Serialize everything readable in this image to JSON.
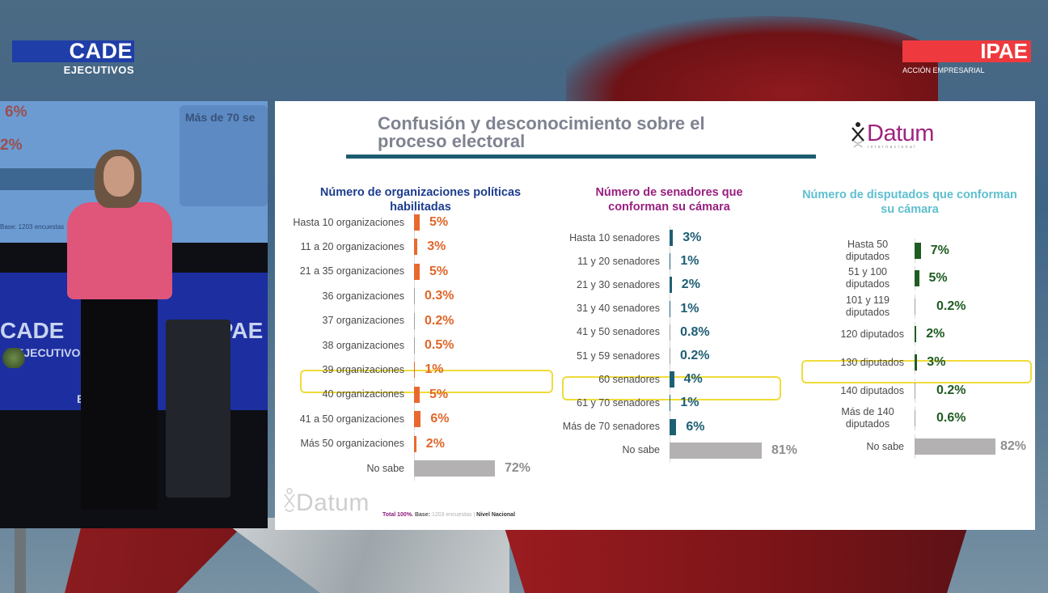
{
  "broadcast": {
    "left_logo": {
      "main": "CADE",
      "sub": "EJECUTIVOS",
      "color": "#1f3ea8"
    },
    "right_logo": {
      "main": "IPAE",
      "sub": "ACCIÓN EMPRESARIAL",
      "color": "#ee3a3e"
    }
  },
  "video_feed": {
    "screen_texts": [
      "6%",
      "2%",
      "Más de 70 se",
      "Base: 1203 encuestas"
    ],
    "backdrop_texts": [
      "CADE",
      "EJECUTIVOS",
      "IPAE",
      "EJ"
    ]
  },
  "slide": {
    "title_line1": "Confusión y desconocimiento sobre el",
    "title_line2": "proceso electoral",
    "brand": {
      "name": "Datum",
      "sub": "internacional",
      "color": "#a0237f"
    },
    "footer": {
      "total": "Total 100%.",
      "base_label": "Base:",
      "base_value": "1203 encuestas",
      "separator": "|",
      "scope": "Nivel Nacional",
      "logo": "Datum"
    }
  },
  "chart_data": [
    {
      "type": "bar",
      "orientation": "horizontal",
      "title": "Número de organizaciones políticas habilitadas",
      "bar_color": "#e8692e",
      "none_color": "#b3b1b2",
      "categories": [
        "Hasta 10 organizaciones",
        "11 a 20 organizaciones",
        "21 a 35 organizaciones",
        "36 organizaciones",
        "37 organizaciones",
        "38 organizaciones",
        "39 organizaciones",
        "40 organizaciones",
        "41 a 50 organizaciones",
        "Más 50 organizaciones",
        "No sabe"
      ],
      "values": [
        5,
        3,
        5,
        0.3,
        0.2,
        0.5,
        1,
        5,
        6,
        2,
        72
      ],
      "labels": [
        "5%",
        "3%",
        "5%",
        "0.3%",
        "0.2%",
        "0.5%",
        "1%",
        "5%",
        "6%",
        "2%",
        "72%"
      ],
      "highlighted": "39 organizaciones",
      "unit": "%"
    },
    {
      "type": "bar",
      "orientation": "horizontal",
      "title": "Número de senadores que conforman su cámara",
      "bar_color": "#1e5f74",
      "none_color": "#b3b1b2",
      "categories": [
        "Hasta 10 senadores",
        "11 y 20 senadores",
        "21 y 30 senadores",
        "31 y 40 senadores",
        "41 y 50 senadores",
        "51 y 59 senadores",
        "60 senadores",
        "61 y 70 senadores",
        "Más de 70 senadores",
        "No sabe"
      ],
      "values": [
        3,
        1,
        2,
        1,
        0.8,
        0.2,
        4,
        1,
        6,
        81
      ],
      "labels": [
        "3%",
        "1%",
        "2%",
        "1%",
        "0.8%",
        "0.2%",
        "4%",
        "1%",
        "6%",
        "81%"
      ],
      "highlighted": "60 senadores",
      "unit": "%"
    },
    {
      "type": "bar",
      "orientation": "horizontal",
      "title": "Número de disputados que conforman su cámara",
      "bar_color": "#1f5c22",
      "none_color": "#b3b1b2",
      "categories": [
        "Hasta 50 diputados",
        "51 y 100 diputados",
        "101 y 119 diputados",
        "120 diputados",
        "130 diputados",
        "140 diputados",
        "Más de 140 diputados",
        "No sabe"
      ],
      "values": [
        7,
        5,
        0.2,
        2,
        3,
        0.2,
        0.6,
        82
      ],
      "labels": [
        "7%",
        "5%",
        "0.2%",
        "2%",
        "3%",
        "0.2%",
        "0.6%",
        "82%"
      ],
      "highlighted": "130 diputados",
      "unit": "%"
    }
  ]
}
